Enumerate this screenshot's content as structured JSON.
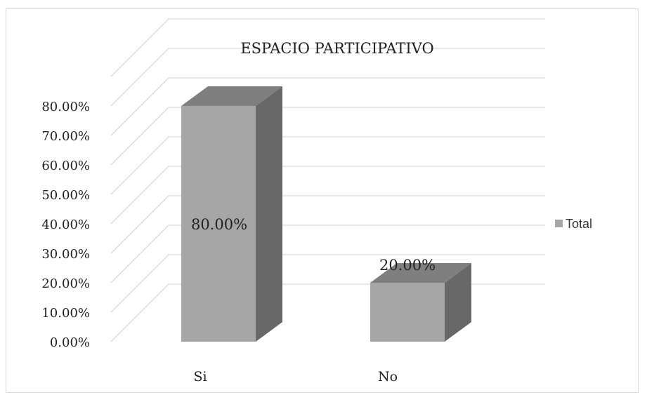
{
  "chart_data": {
    "type": "bar",
    "title": "ESPACIO PARTICIPATIVO",
    "categories": [
      "Si",
      "No"
    ],
    "series": [
      {
        "name": "Total",
        "values": [
          0.8,
          0.2
        ]
      }
    ],
    "data_labels": [
      "80.00%",
      "20.00%"
    ],
    "y_ticks": [
      "0.00%",
      "10.00%",
      "20.00%",
      "30.00%",
      "40.00%",
      "50.00%",
      "60.00%",
      "70.00%",
      "80.00%"
    ],
    "ylim": [
      0,
      0.8
    ],
    "grid": true,
    "legend_position": "right",
    "three_d": true,
    "colors": {
      "front": "#a6a6a6",
      "side": "#686868",
      "top": "#7f7f7f",
      "grid": "#d9d9d9",
      "text": "#222222",
      "legend_swatch": "#a6a6a6"
    }
  }
}
